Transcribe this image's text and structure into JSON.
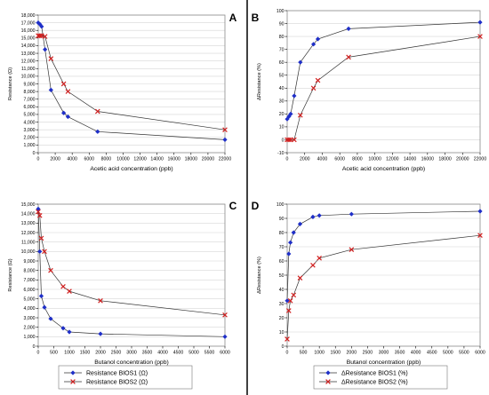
{
  "figure": {
    "panels": [
      "A",
      "B",
      "C",
      "D"
    ],
    "colors": {
      "bios1": "#1f2fc8",
      "bios2": "#d11f1f",
      "axis": "#000000"
    }
  },
  "chart_data": [
    {
      "id": "A",
      "type": "line",
      "xlabel": "Acetic acid concentration (ppb)",
      "ylabel": "Resistance (Ω)",
      "xlim": [
        0,
        22000
      ],
      "ylim": [
        0,
        18000
      ],
      "xticks": [
        0,
        2000,
        4000,
        6000,
        8000,
        10000,
        12000,
        14000,
        16000,
        18000,
        20000,
        22000
      ],
      "yticks": [
        0,
        1000,
        2000,
        3000,
        4000,
        5000,
        6000,
        7000,
        8000,
        9000,
        10000,
        11000,
        12000,
        13000,
        14000,
        15000,
        16000,
        17000,
        18000
      ],
      "ytick_format": "comma",
      "series": [
        {
          "key": "bios1",
          "marker": "diamond",
          "x": [
            0,
            200,
            400,
            800,
            1500,
            3000,
            3500,
            7000,
            22000
          ],
          "y": [
            17000,
            16800,
            16500,
            13500,
            8200,
            5200,
            4700,
            2750,
            1700
          ]
        },
        {
          "key": "bios2",
          "marker": "cross",
          "x": [
            0,
            200,
            400,
            800,
            1500,
            3000,
            3500,
            7000,
            22000
          ],
          "y": [
            15300,
            15300,
            15300,
            15200,
            12300,
            9000,
            8000,
            5400,
            3000
          ]
        }
      ]
    },
    {
      "id": "B",
      "type": "line",
      "xlabel": "Acetic acid concentration (ppb)",
      "ylabel": "ΔResistance (%)",
      "xlim": [
        0,
        22000
      ],
      "ylim": [
        -10,
        100
      ],
      "xticks": [
        0,
        2000,
        4000,
        6000,
        8000,
        10000,
        12000,
        14000,
        16000,
        18000,
        20000,
        22000
      ],
      "yticks": [
        -10,
        0,
        10,
        20,
        30,
        40,
        50,
        60,
        70,
        80,
        90,
        100
      ],
      "ytick_format": "plain",
      "series": [
        {
          "key": "bios1",
          "marker": "diamond",
          "x": [
            0,
            200,
            400,
            800,
            1500,
            3000,
            3500,
            7000,
            22000
          ],
          "y": [
            16,
            18,
            20,
            34,
            60,
            74,
            78,
            86,
            91
          ]
        },
        {
          "key": "bios2",
          "marker": "cross",
          "x": [
            0,
            200,
            400,
            800,
            1500,
            3000,
            3500,
            7000,
            22000
          ],
          "y": [
            0,
            0,
            0,
            0,
            19,
            40,
            46,
            64,
            80
          ]
        }
      ]
    },
    {
      "id": "C",
      "type": "line",
      "xlabel": "Butanol concentration (ppb)",
      "ylabel": "Resistance (Ω)",
      "xlim": [
        0,
        6000
      ],
      "ylim": [
        0,
        15000
      ],
      "xticks": [
        0,
        500,
        1000,
        1500,
        2000,
        2500,
        3000,
        3500,
        4000,
        4500,
        5000,
        5500,
        6000
      ],
      "yticks": [
        0,
        1000,
        2000,
        3000,
        4000,
        5000,
        6000,
        7000,
        8000,
        9000,
        10000,
        11000,
        12000,
        13000,
        14000,
        15000
      ],
      "ytick_format": "comma",
      "series": [
        {
          "key": "bios1",
          "marker": "diamond",
          "x": [
            0,
            50,
            100,
            200,
            400,
            800,
            1000,
            2000,
            6000
          ],
          "y": [
            14500,
            10000,
            5300,
            4100,
            2900,
            1900,
            1500,
            1300,
            1000
          ]
        },
        {
          "key": "bios2",
          "marker": "cross",
          "x": [
            0,
            50,
            100,
            200,
            400,
            800,
            1000,
            2000,
            6000
          ],
          "y": [
            14200,
            13800,
            11400,
            10000,
            8000,
            6300,
            5800,
            4800,
            3300
          ]
        }
      ]
    },
    {
      "id": "D",
      "type": "line",
      "xlabel": "Butanol concentration (ppb)",
      "ylabel": "ΔResistance (%)",
      "xlim": [
        0,
        6000
      ],
      "ylim": [
        0,
        100
      ],
      "xticks": [
        0,
        500,
        1000,
        1500,
        2000,
        2500,
        3000,
        3500,
        4000,
        4500,
        5000,
        5500,
        6000
      ],
      "yticks": [
        0,
        10,
        20,
        30,
        40,
        50,
        60,
        70,
        80,
        90,
        100
      ],
      "ytick_format": "plain",
      "series": [
        {
          "key": "bios1",
          "marker": "diamond",
          "x": [
            0,
            50,
            100,
            200,
            400,
            800,
            1000,
            2000,
            6000
          ],
          "y": [
            32,
            65,
            73,
            80,
            86,
            91,
            92,
            93,
            95
          ]
        },
        {
          "key": "bios2",
          "marker": "cross",
          "x": [
            0,
            50,
            100,
            200,
            400,
            800,
            1000,
            2000,
            6000
          ],
          "y": [
            5,
            25,
            32,
            36,
            48,
            57,
            62,
            68,
            78
          ]
        }
      ]
    }
  ],
  "legends": {
    "left": [
      {
        "key": "bios1",
        "marker": "diamond",
        "label": "Resistance BIOS1 (Ω)"
      },
      {
        "key": "bios2",
        "marker": "cross",
        "label": "Resistance BIOS2 (Ω)"
      }
    ],
    "right": [
      {
        "key": "bios1",
        "marker": "diamond",
        "label": "ΔResistance BIOS1 (%)"
      },
      {
        "key": "bios2",
        "marker": "cross",
        "label": "ΔResistance BIOS2 (%)"
      }
    ]
  }
}
